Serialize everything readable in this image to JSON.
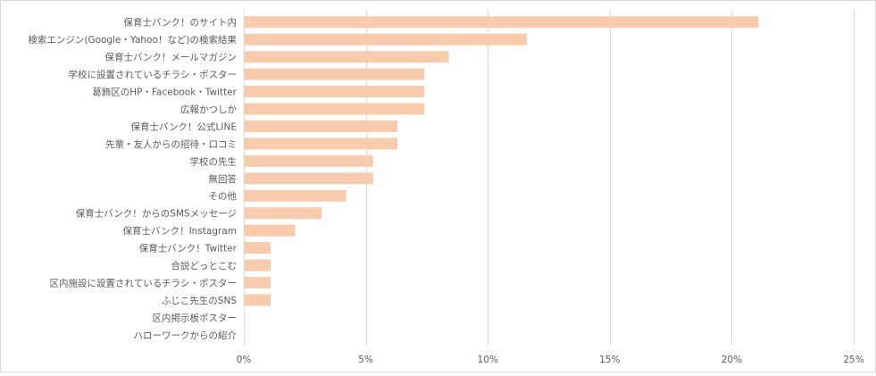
{
  "chart_data": {
    "type": "bar",
    "orientation": "horizontal",
    "title": "",
    "xlabel": "",
    "ylabel": "",
    "xlim": [
      0,
      25
    ],
    "x_ticks": [
      0,
      5,
      10,
      15,
      20,
      25
    ],
    "x_tick_labels": [
      "0%",
      "5%",
      "10%",
      "15%",
      "20%",
      "25%"
    ],
    "grid": "vertical",
    "legend": "none",
    "bar_color": "#f8cbad",
    "categories": [
      "保育士バンク！のサイト内",
      "検索エンジン(Google・Yahoo！など)の検索結果",
      "保育士バンク！メールマガジン",
      "学校に設置されているチラシ・ポスター",
      "葛飾区のHP・Facebook・Twitter",
      "広報かつしか",
      "保育士バンク！公式LINE",
      "先輩・友人からの招待・口コミ",
      "学校の先生",
      "無回答",
      "その他",
      "保育士バンク！からのSMSメッセージ",
      "保育士バンク！Instagram",
      "保育士バンク！Twitter",
      "合説どっとこむ",
      "区内施設に設置されているチラシ・ポスター",
      "ふじこ先生のSNS",
      "区内掲示板ポスター",
      "ハローワークからの紹介"
    ],
    "values": [
      21.1,
      11.6,
      8.4,
      7.4,
      7.4,
      7.4,
      6.3,
      6.3,
      5.3,
      5.3,
      4.2,
      3.2,
      2.1,
      1.1,
      1.1,
      1.1,
      1.1,
      0,
      0
    ]
  }
}
